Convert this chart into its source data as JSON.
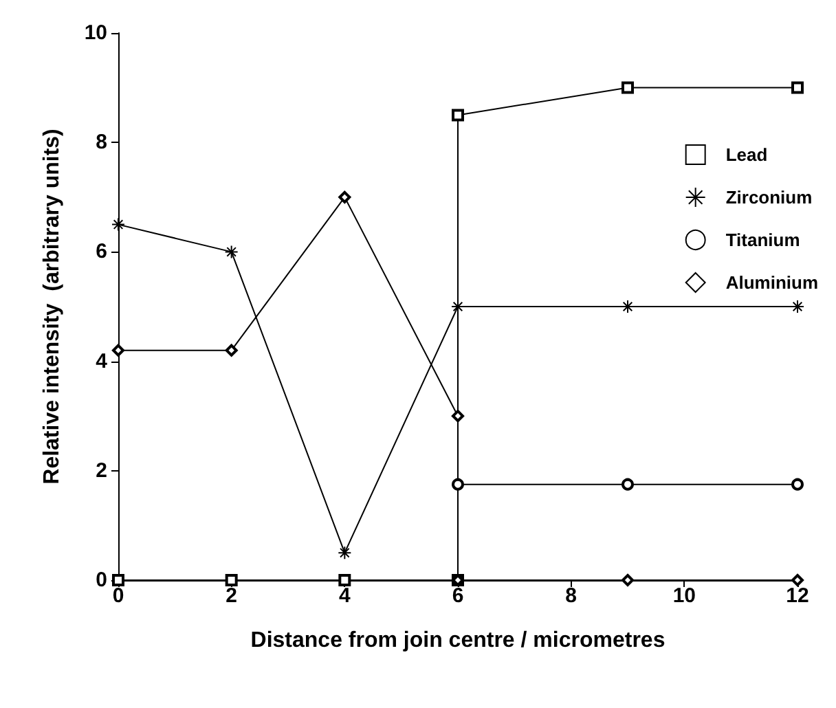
{
  "chart_data": {
    "type": "line",
    "xlabel": "Distance from join centre / micrometres",
    "ylabel": "Relative intensity  (arbitrary units)",
    "xlim": [
      0,
      12
    ],
    "xticks": [
      0,
      2,
      4,
      6,
      8,
      10,
      12
    ],
    "ylim": [
      0,
      10
    ],
    "yticks": [
      0,
      2,
      4,
      6,
      8,
      10
    ],
    "grid": false,
    "legend": "top right",
    "line_style": "solid",
    "series": [
      {
        "name": "Lead",
        "color": "#000000",
        "marker": "square",
        "x": [
          0,
          2,
          4,
          6,
          6,
          9,
          12
        ],
        "values": [
          0,
          0,
          0,
          0,
          8.5,
          9,
          9
        ]
      },
      {
        "name": "Zirconium",
        "color": "#000000",
        "marker": "cross",
        "x": [
          0,
          2,
          4,
          6,
          9,
          12
        ],
        "values": [
          6.5,
          6,
          0.5,
          5,
          5,
          5
        ]
      },
      {
        "name": "Titanium",
        "color": "#000000",
        "marker": "circle",
        "x": [
          6,
          9,
          12
        ],
        "values": [
          1.75,
          1.75,
          1.75
        ]
      },
      {
        "name": "Aluminium",
        "color": "#000000",
        "marker": "diamond",
        "x": [
          0,
          2,
          4,
          6,
          6,
          9,
          12
        ],
        "values": [
          4.2,
          4.2,
          7,
          3,
          0,
          0,
          0
        ]
      }
    ]
  }
}
